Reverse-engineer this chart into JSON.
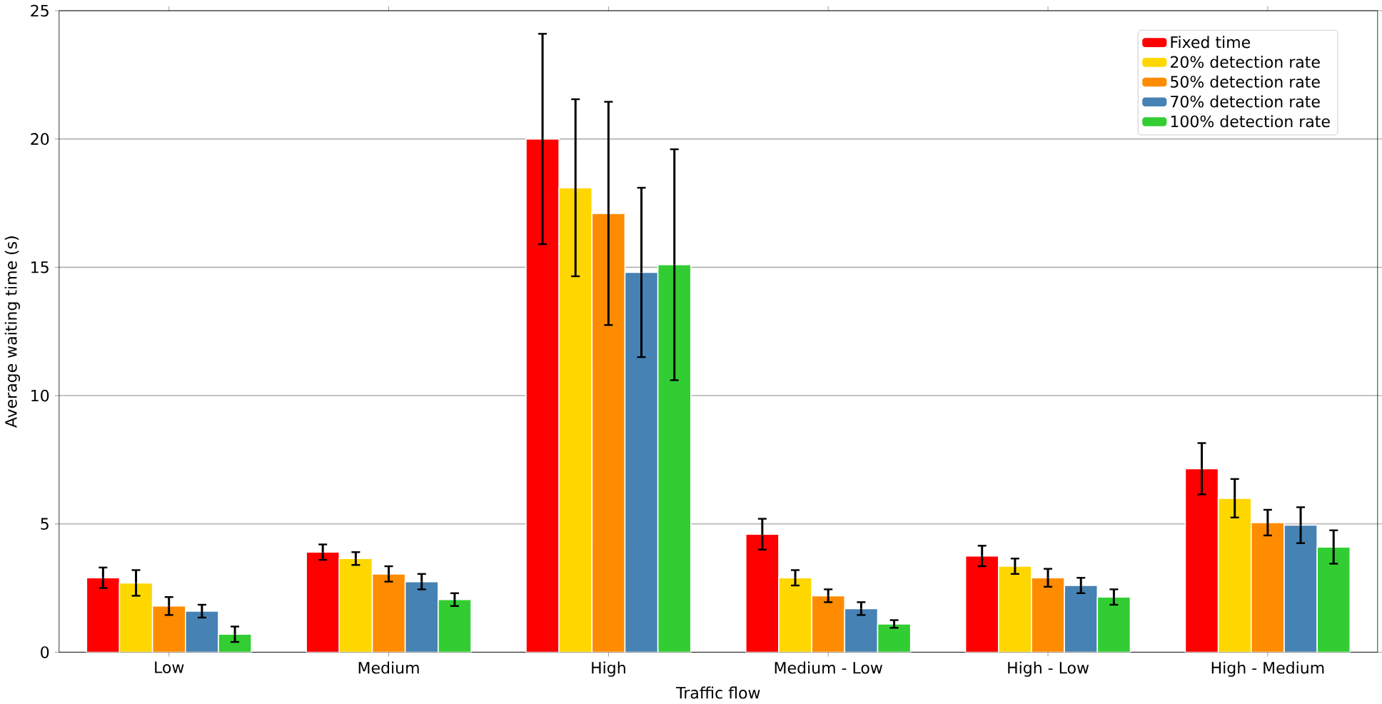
{
  "chart_data": {
    "type": "bar",
    "xlabel": "Traffic flow",
    "ylabel": "Average waiting time (s)",
    "categories": [
      "Low",
      "Medium",
      "High",
      "Medium - Low",
      "High - Low",
      "High - Medium"
    ],
    "ylim": [
      0,
      25
    ],
    "yticks": [
      0,
      5,
      10,
      15,
      20,
      25
    ],
    "grid": "y",
    "legend": "top right",
    "series": [
      {
        "name": "Fixed time",
        "color": "#ff0000",
        "values": [
          2.9,
          3.9,
          20.0,
          4.6,
          3.75,
          7.15
        ],
        "errors": [
          0.4,
          0.3,
          4.1,
          0.6,
          0.4,
          1.0
        ]
      },
      {
        "name": "20% detection rate",
        "color": "#ffd700",
        "values": [
          2.7,
          3.65,
          18.1,
          2.9,
          3.35,
          6.0
        ],
        "errors": [
          0.5,
          0.25,
          3.45,
          0.3,
          0.3,
          0.75
        ]
      },
      {
        "name": "50% detection rate",
        "color": "#ff8c00",
        "values": [
          1.8,
          3.05,
          17.1,
          2.2,
          2.9,
          5.05
        ],
        "errors": [
          0.35,
          0.3,
          4.35,
          0.25,
          0.35,
          0.5
        ]
      },
      {
        "name": "70% detection rate",
        "color": "#4682b4",
        "values": [
          1.6,
          2.75,
          14.8,
          1.7,
          2.6,
          4.95
        ],
        "errors": [
          0.25,
          0.3,
          3.3,
          0.25,
          0.3,
          0.7
        ]
      },
      {
        "name": "100% detection rate",
        "color": "#32cd32",
        "values": [
          0.7,
          2.05,
          15.1,
          1.1,
          2.15,
          4.1
        ],
        "errors": [
          0.3,
          0.25,
          4.5,
          0.15,
          0.3,
          0.65
        ]
      }
    ]
  }
}
